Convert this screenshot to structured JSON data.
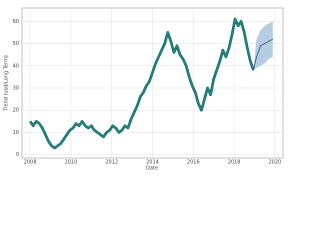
{
  "chart_data": {
    "type": "line",
    "x_label": "Date",
    "y_label": "Trend (usd/Long Term)",
    "xlim": [
      2007.6,
      2020.4
    ],
    "ylim": [
      -1.5,
      66
    ],
    "xticks": [
      2008,
      2010,
      2012,
      2014,
      2016,
      2018,
      2020
    ],
    "yticks": [
      0,
      10,
      20,
      30,
      40,
      50,
      60
    ],
    "grid": true,
    "series": [
      {
        "color": "#1a8c86",
        "x": [
          2008.0,
          2008.15,
          2008.3,
          2008.45,
          2008.6,
          2008.75,
          2008.9,
          2009.05,
          2009.2,
          2009.35,
          2009.5,
          2009.65,
          2009.8,
          2009.95,
          2010.1,
          2010.25,
          2010.4,
          2010.55,
          2010.7,
          2010.85,
          2011.0,
          2011.15,
          2011.3,
          2011.45,
          2011.6,
          2011.75,
          2011.9,
          2012.05,
          2012.2,
          2012.35,
          2012.5,
          2012.65,
          2012.8,
          2012.95,
          2013.1,
          2013.25,
          2013.4,
          2013.55,
          2013.7,
          2013.85,
          2014.0,
          2014.15,
          2014.3,
          2014.45,
          2014.6,
          2014.75,
          2014.9,
          2015.05,
          2015.2,
          2015.35,
          2015.5,
          2015.65,
          2015.8,
          2015.95,
          2016.1,
          2016.25,
          2016.4,
          2016.55,
          2016.7,
          2016.85,
          2017.0,
          2017.15,
          2017.3,
          2017.45,
          2017.6,
          2017.75,
          2017.9,
          2018.05,
          2018.2,
          2018.35,
          2018.5,
          2018.65,
          2018.8,
          2018.95
        ],
        "values": [
          15,
          13,
          15,
          14,
          12,
          9,
          6,
          4,
          3,
          4,
          5,
          7,
          9,
          11,
          12,
          14,
          13,
          15,
          13,
          12,
          13,
          11,
          10,
          9,
          8,
          10,
          11,
          13,
          12,
          10,
          11,
          13,
          12,
          16,
          19,
          22,
          26,
          28,
          31,
          33,
          37,
          41,
          44,
          47,
          50,
          55,
          51,
          46,
          49,
          45,
          43,
          40,
          35,
          31,
          28,
          23,
          20,
          25,
          30,
          27,
          34,
          38,
          42,
          47,
          44,
          48,
          54,
          61,
          58,
          60,
          55,
          48,
          42,
          38
        ]
      },
      {
        "color": "#2c4a7c",
        "band_color": "#a9c3db",
        "x": [
          2018.95,
          2019.1,
          2019.3,
          2019.5,
          2019.7,
          2019.9
        ],
        "values": [
          38,
          44,
          49,
          50,
          51,
          52
        ],
        "lower": [
          38,
          39,
          40,
          41,
          43,
          44
        ],
        "upper": [
          38,
          52,
          56,
          58,
          59,
          60
        ]
      }
    ]
  }
}
